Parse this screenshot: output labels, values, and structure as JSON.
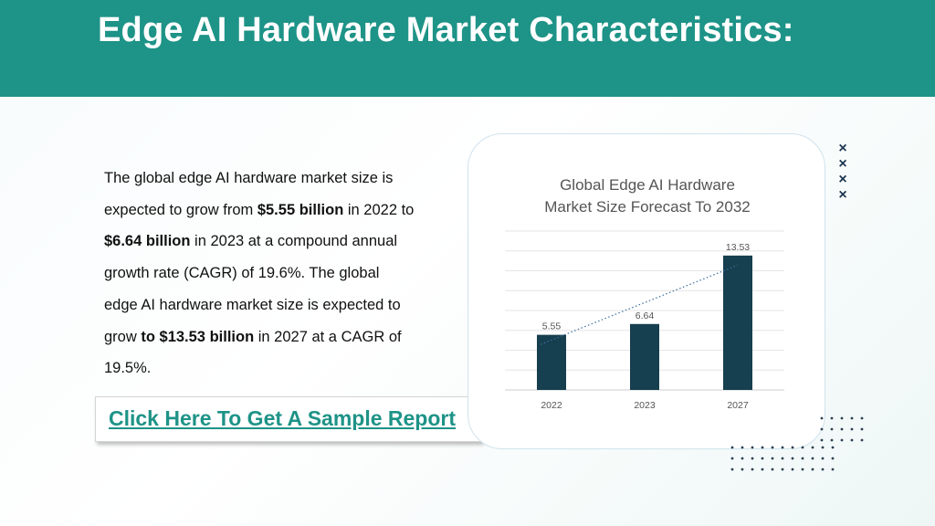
{
  "header": {
    "title": "Edge AI Hardware Market Characteristics:"
  },
  "description": {
    "t1": "The global edge AI hardware market size is expected to grow from ",
    "b1": "$5.55 billion",
    "t2": " in 2022 to ",
    "b2": "$6.64 billion",
    "t3": " in 2023 at a compound annual growth rate (CAGR) of 19.6%. The global edge AI hardware market size is expected to grow ",
    "b3": "to $13.53 billion",
    "t4": " in 2027 at a CAGR of 19.5%."
  },
  "cta": {
    "label": "Click Here To Get A Sample Report"
  },
  "decor": {
    "x_mark": "×",
    "x_count": 4
  },
  "chart_data": {
    "type": "bar",
    "title_line1": "Global Edge AI Hardware",
    "title_line2": "Market Size Forecast To 2032",
    "categories": [
      "2022",
      "2023",
      "2027"
    ],
    "values": [
      5.55,
      6.64,
      13.53
    ],
    "data_labels": [
      "5.55",
      "6.64",
      "13.53"
    ],
    "ylim": [
      0,
      16
    ],
    "grid": true,
    "trendline": "linear, dotted",
    "colors": {
      "bar": "#163f4f",
      "trend": "#3a6d9e",
      "grid": "#e6e6e6",
      "label": "#555555"
    }
  }
}
